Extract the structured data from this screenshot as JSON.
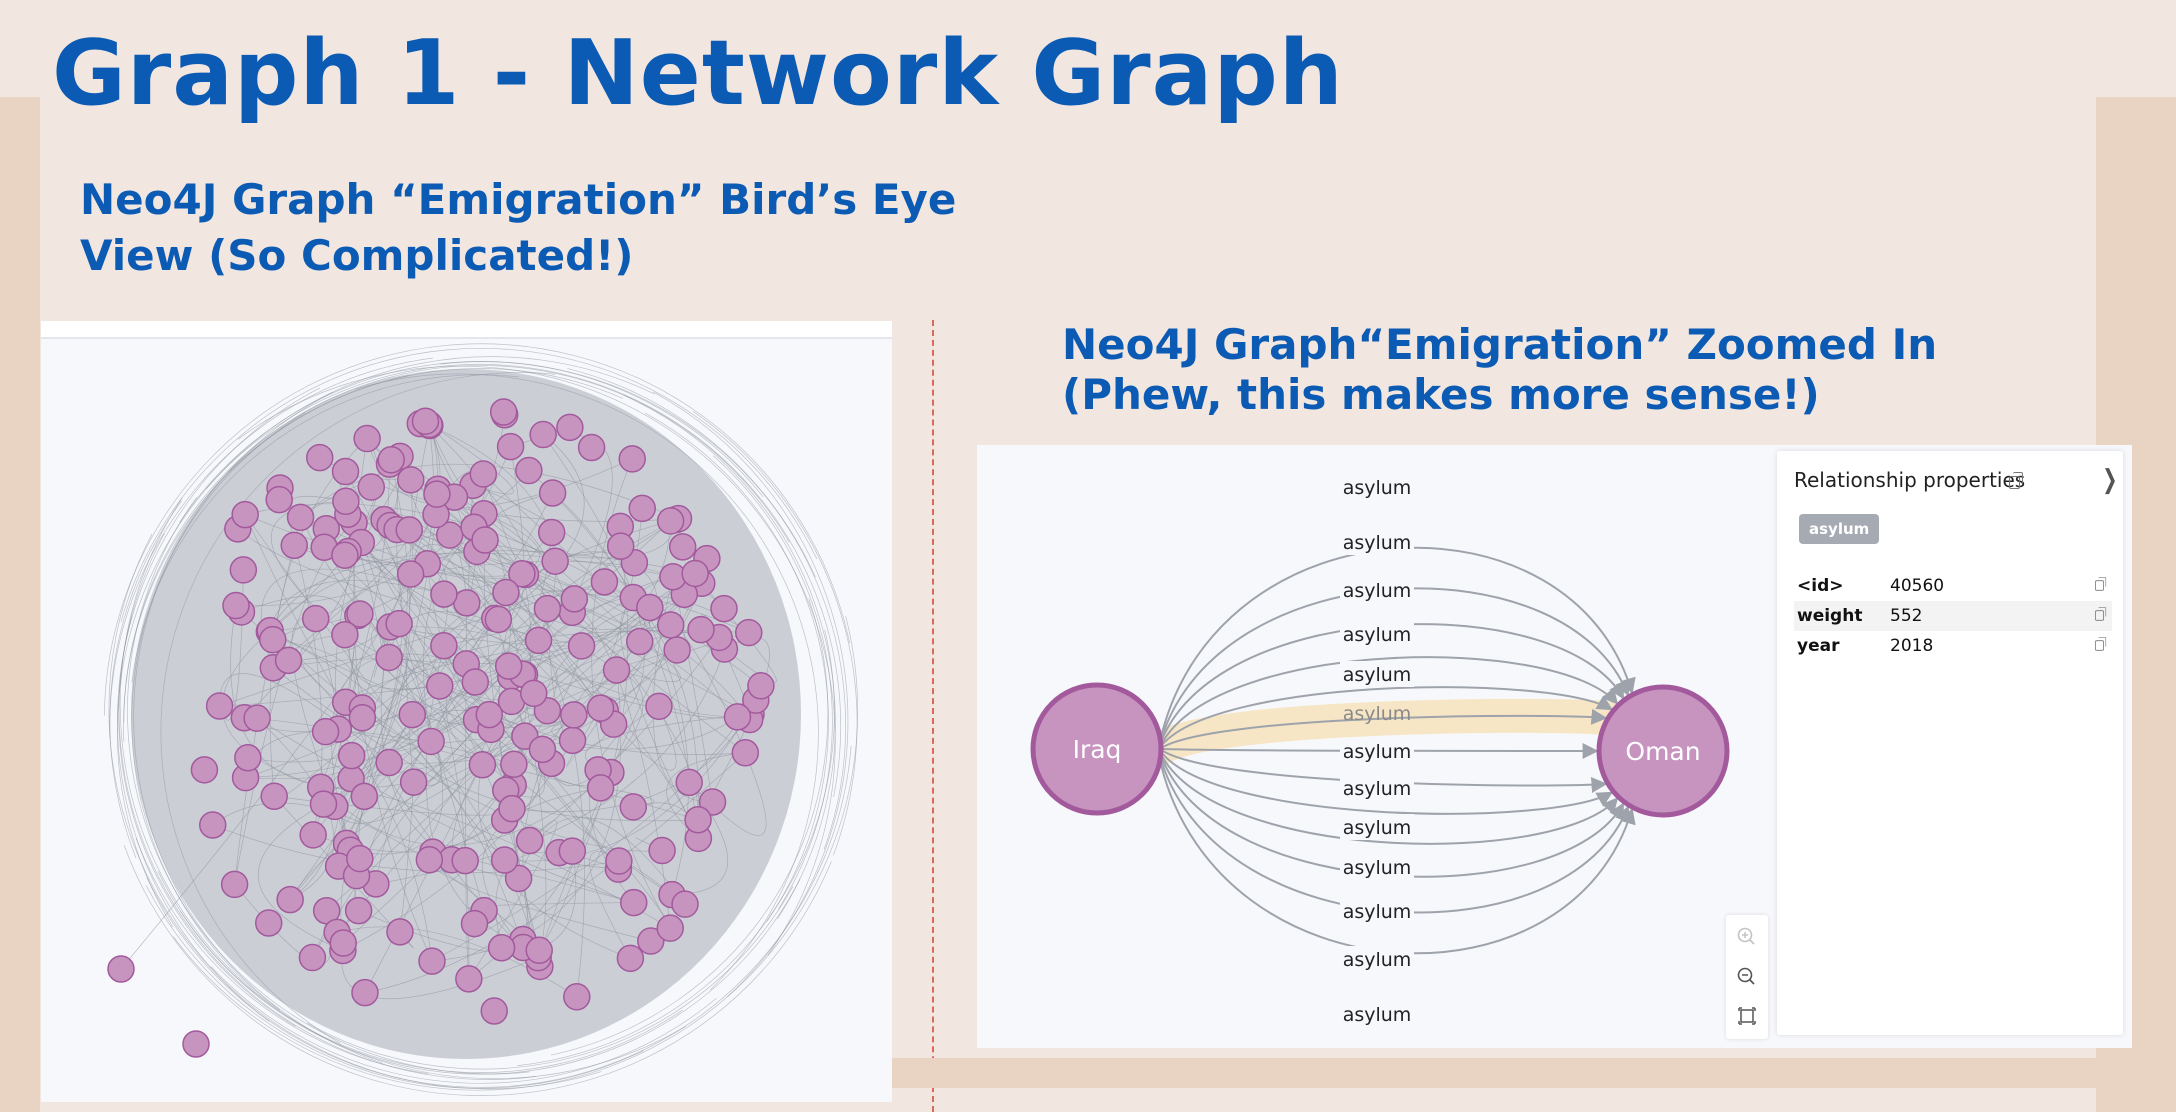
{
  "slide": {
    "title": "Graph 1 - Network Graph",
    "left_heading": [
      "Neo4J Graph “Emigration” Bird’s Eye",
      "View (So Complicated!)"
    ],
    "right_heading": [
      "Neo4J Graph“Emigration” Zoomed In",
      "(Phew, this makes more sense!)"
    ]
  },
  "colors": {
    "title_blue": "#0b5ab3",
    "background": "#f2e6e0",
    "band": "#e9d3c3",
    "divider": "#d76a5a",
    "node_fill": "#c794c0",
    "node_stroke": "#a25a9c",
    "edge": "#9ea3ab",
    "highlight": "#f7e6c5"
  },
  "birds_eye": {
    "node_count": 220
  },
  "zoomed": {
    "source_node": "Iraq",
    "target_node": "Oman",
    "edges": [
      "asylum",
      "asylum",
      "asylum",
      "asylum",
      "asylum",
      "asylum",
      "asylum",
      "asylum",
      "asylum",
      "asylum",
      "asylum",
      "asylum",
      "asylum"
    ],
    "selected_edge_index": 5,
    "controls": [
      "zoom-in-icon",
      "zoom-out-icon",
      "fit-view-icon"
    ]
  },
  "properties": {
    "title": "Relationship properties",
    "type_badge": "asylum",
    "rows": [
      {
        "key": "<id>",
        "value": "40560"
      },
      {
        "key": "weight",
        "value": "552"
      },
      {
        "key": "year",
        "value": "2018"
      }
    ]
  }
}
